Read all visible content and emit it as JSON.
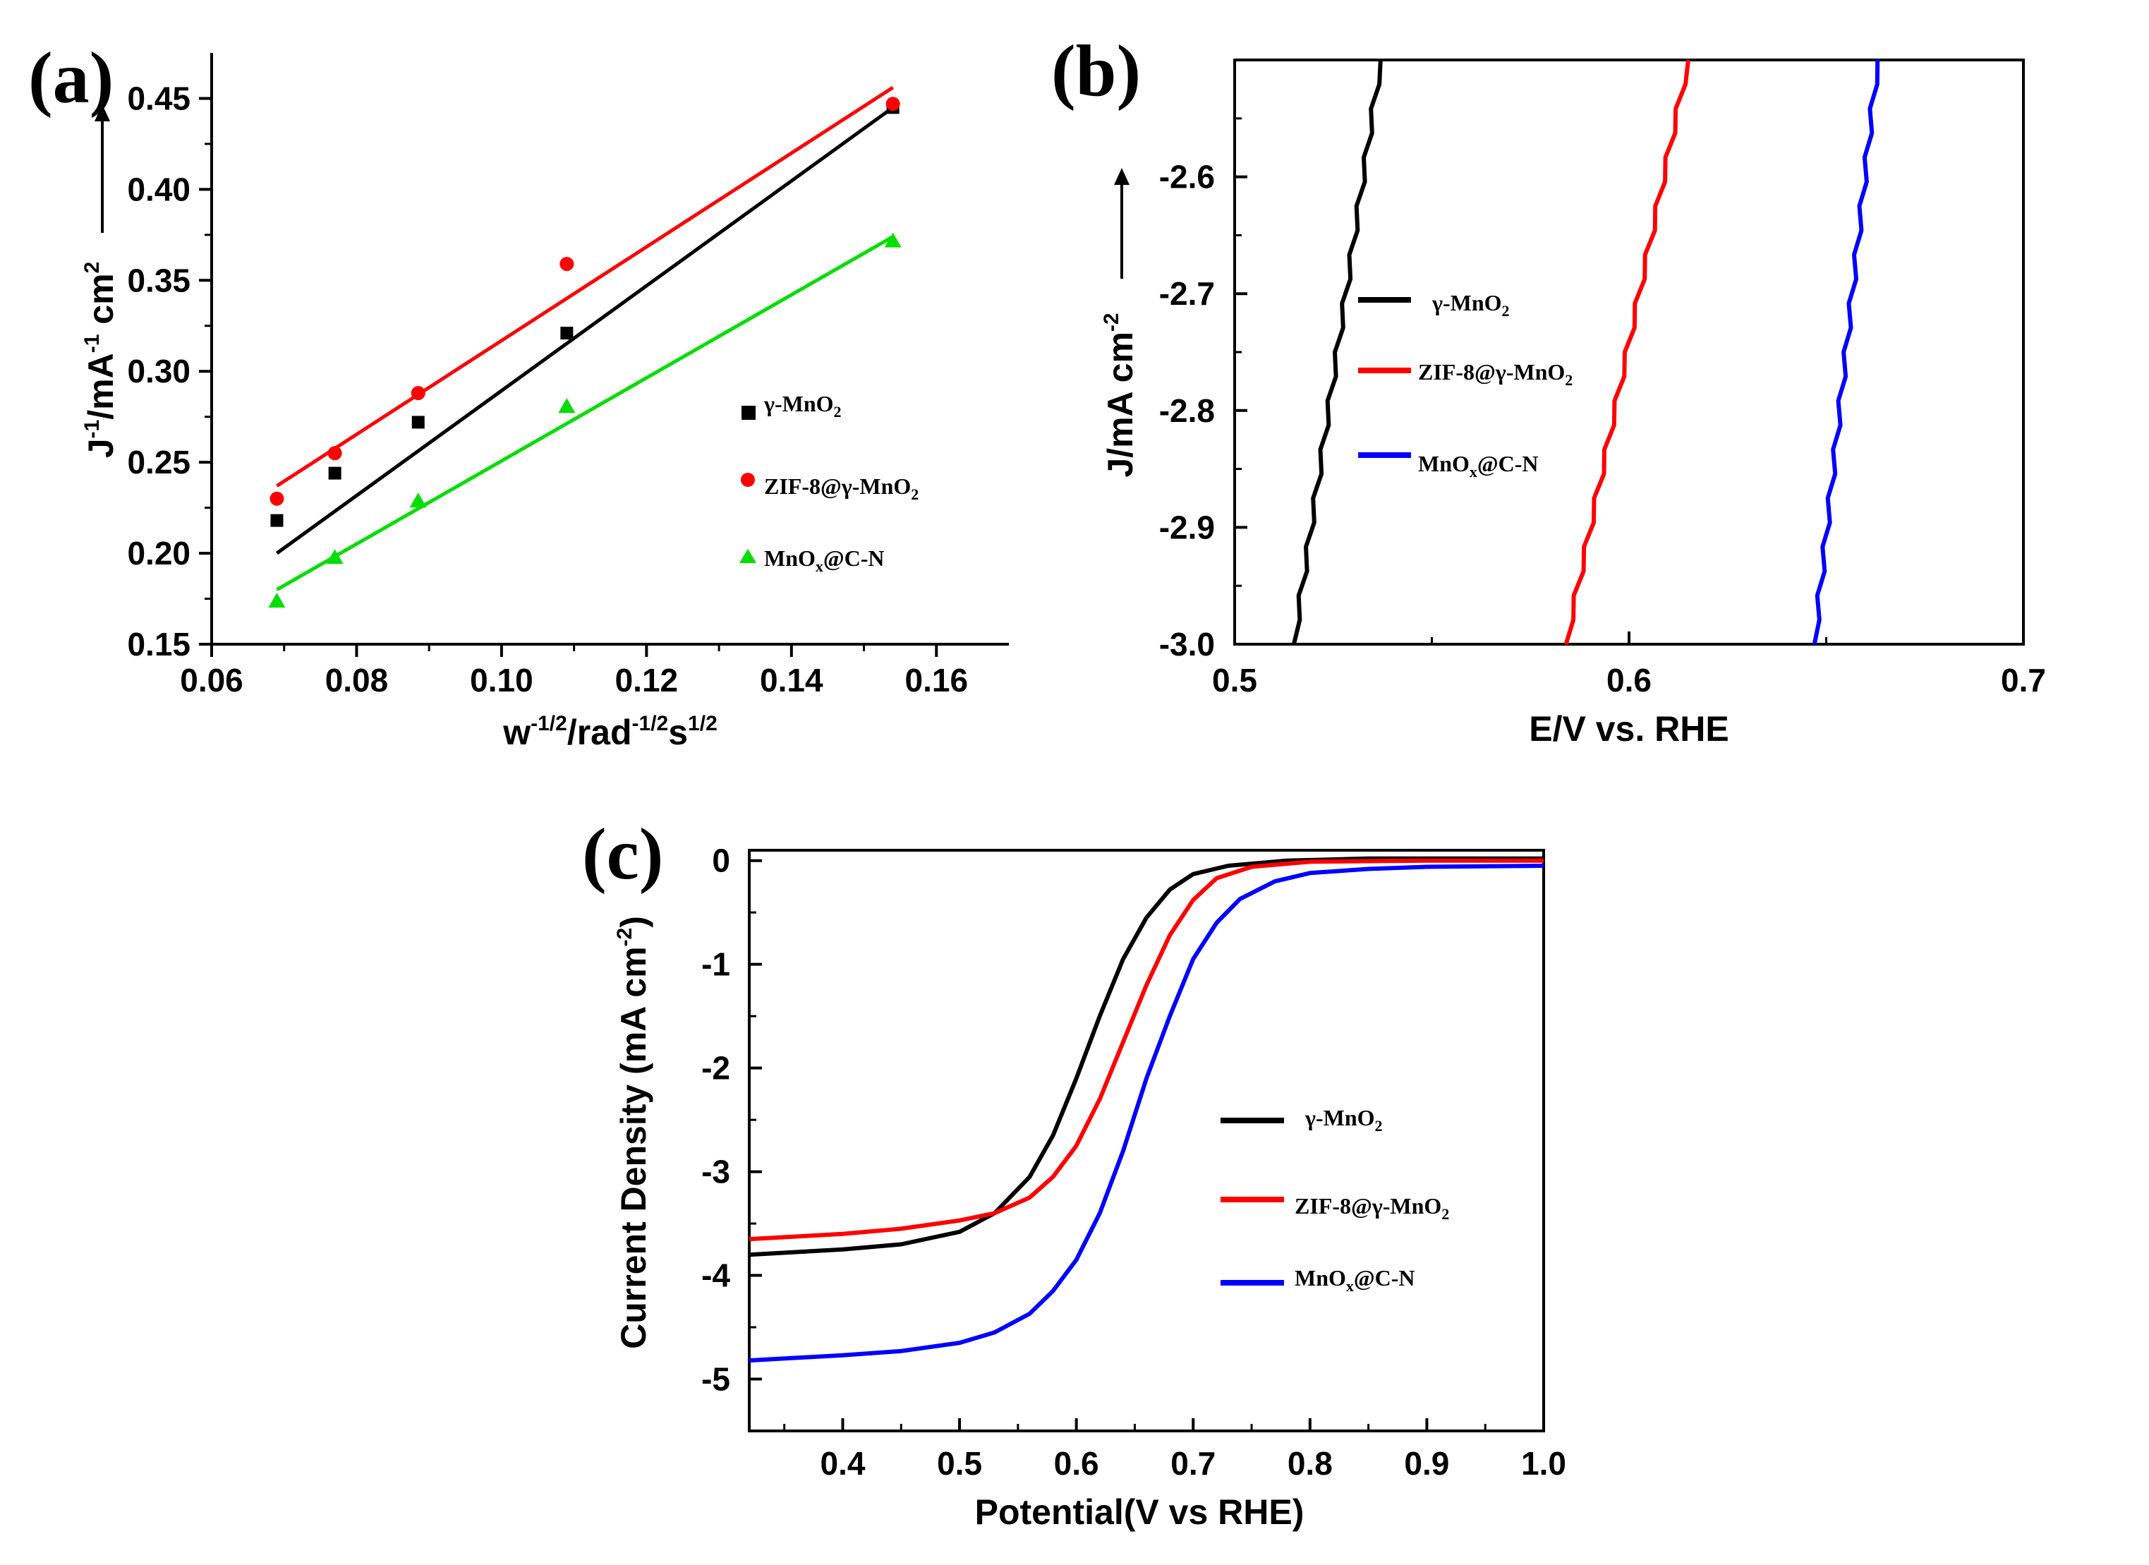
{
  "chart_data": [
    {
      "panel": "(a)",
      "type": "scatter",
      "xlabel_parts": [
        "w",
        "-1/2",
        "/rad",
        "-1/2",
        "s",
        "1/2"
      ],
      "ylabel_parts": [
        "J",
        "-1",
        "/mA",
        "-1",
        " cm",
        "2"
      ],
      "xlim": [
        0.06,
        0.17
      ],
      "ylim": [
        0.15,
        0.475
      ],
      "xticks": [
        "0.06",
        "0.08",
        "0.10",
        "0.12",
        "0.14",
        "0.16"
      ],
      "yticks": [
        "0.15",
        "0.20",
        "0.25",
        "0.30",
        "0.35",
        "0.40",
        "0.45"
      ],
      "x": [
        0.069,
        0.077,
        0.0885,
        0.109,
        0.154
      ],
      "series": [
        {
          "name": "γ-MnO2",
          "label": "γ-MnO",
          "sub": "2",
          "color": "#000000",
          "marker": "square",
          "values": [
            0.218,
            0.244,
            0.272,
            0.321,
            0.445
          ],
          "fit": [
            0.2,
            0.445
          ]
        },
        {
          "name": "ZIF-8@γ-MnO2",
          "label": "ZIF-8@γ-MnO",
          "sub": "2",
          "color": "#ff0000",
          "marker": "circle",
          "values": [
            0.23,
            0.255,
            0.288,
            0.359,
            0.447
          ],
          "fit": [
            0.237,
            0.456
          ]
        },
        {
          "name": "MnOx@C-N",
          "label": "MnO",
          "sub": "x",
          "suffix": "@C-N",
          "color": "#00dd00",
          "marker": "triangle",
          "values": [
            0.174,
            0.198,
            0.229,
            0.281,
            0.372
          ],
          "fit": [
            0.18,
            0.374
          ]
        }
      ]
    },
    {
      "panel": "(b)",
      "type": "line",
      "xlabel": "E/V vs. RHE",
      "ylabel_parts": [
        "J/mA cm",
        "-2"
      ],
      "xlim": [
        0.5,
        0.7
      ],
      "ylim": [
        -3.0,
        -2.5
      ],
      "xticks": [
        "0.5",
        "0.6",
        "0.7"
      ],
      "yticks": [
        "-3.0",
        "-2.9",
        "-2.8",
        "-2.7",
        "-2.6"
      ],
      "series": [
        {
          "name": "γ-MnO2",
          "label": "γ-MnO",
          "sub": "2",
          "color": "#000000",
          "v_bottom": 0.515,
          "v_top": 0.537
        },
        {
          "name": "ZIF-8@γ-MnO2",
          "label": "ZIF-8@γ-MnO",
          "sub": "2",
          "color": "#ff0000",
          "v_bottom": 0.584,
          "v_top": 0.615
        },
        {
          "name": "MnOx@C-N",
          "label": "MnO",
          "sub": "x",
          "suffix": "@C-N",
          "color": "#0000ff",
          "v_bottom": 0.647,
          "v_top": 0.663
        }
      ]
    },
    {
      "panel": "(c)",
      "type": "line",
      "xlabel": "Potential(V vs RHE)",
      "ylabel_parts": [
        "Current Density (mA cm",
        "-2",
        ")"
      ],
      "xlim": [
        0.32,
        1.0
      ],
      "ylim": [
        -5.5,
        0.1
      ],
      "xticks": [
        "0.4",
        "0.5",
        "0.6",
        "0.7",
        "0.8",
        "0.9",
        "1.0"
      ],
      "yticks": [
        "0",
        "-1",
        "-2",
        "-3",
        "-4",
        "-5"
      ],
      "series": [
        {
          "name": "γ-MnO2",
          "label": "γ-MnO",
          "sub": "2",
          "color": "#000000",
          "points": [
            [
              0.32,
              -3.8
            ],
            [
              0.4,
              -3.75
            ],
            [
              0.45,
              -3.7
            ],
            [
              0.5,
              -3.58
            ],
            [
              0.53,
              -3.4
            ],
            [
              0.56,
              -3.05
            ],
            [
              0.58,
              -2.65
            ],
            [
              0.6,
              -2.1
            ],
            [
              0.62,
              -1.5
            ],
            [
              0.64,
              -0.95
            ],
            [
              0.66,
              -0.55
            ],
            [
              0.68,
              -0.28
            ],
            [
              0.7,
              -0.13
            ],
            [
              0.73,
              -0.05
            ],
            [
              0.78,
              0.0
            ],
            [
              0.85,
              0.02
            ],
            [
              1.0,
              0.02
            ]
          ]
        },
        {
          "name": "ZIF-8@γ-MnO2",
          "label": "ZIF-8@γ-MnO",
          "sub": "2",
          "color": "#ff0000",
          "points": [
            [
              0.32,
              -3.65
            ],
            [
              0.4,
              -3.6
            ],
            [
              0.45,
              -3.55
            ],
            [
              0.5,
              -3.47
            ],
            [
              0.53,
              -3.4
            ],
            [
              0.56,
              -3.25
            ],
            [
              0.58,
              -3.05
            ],
            [
              0.6,
              -2.75
            ],
            [
              0.62,
              -2.3
            ],
            [
              0.64,
              -1.75
            ],
            [
              0.66,
              -1.2
            ],
            [
              0.68,
              -0.72
            ],
            [
              0.7,
              -0.38
            ],
            [
              0.72,
              -0.17
            ],
            [
              0.75,
              -0.06
            ],
            [
              0.8,
              -0.01
            ],
            [
              0.9,
              0.0
            ],
            [
              1.0,
              0.0
            ]
          ]
        },
        {
          "name": "MnOx@C-N",
          "label": "MnO",
          "sub": "x",
          "suffix": "@C-N",
          "color": "#0000ff",
          "points": [
            [
              0.32,
              -4.82
            ],
            [
              0.4,
              -4.77
            ],
            [
              0.45,
              -4.73
            ],
            [
              0.5,
              -4.65
            ],
            [
              0.53,
              -4.55
            ],
            [
              0.56,
              -4.37
            ],
            [
              0.58,
              -4.15
            ],
            [
              0.6,
              -3.85
            ],
            [
              0.62,
              -3.4
            ],
            [
              0.64,
              -2.8
            ],
            [
              0.66,
              -2.1
            ],
            [
              0.68,
              -1.5
            ],
            [
              0.7,
              -0.95
            ],
            [
              0.72,
              -0.6
            ],
            [
              0.74,
              -0.37
            ],
            [
              0.77,
              -0.2
            ],
            [
              0.8,
              -0.12
            ],
            [
              0.85,
              -0.08
            ],
            [
              0.9,
              -0.06
            ],
            [
              1.0,
              -0.05
            ]
          ]
        }
      ]
    }
  ]
}
